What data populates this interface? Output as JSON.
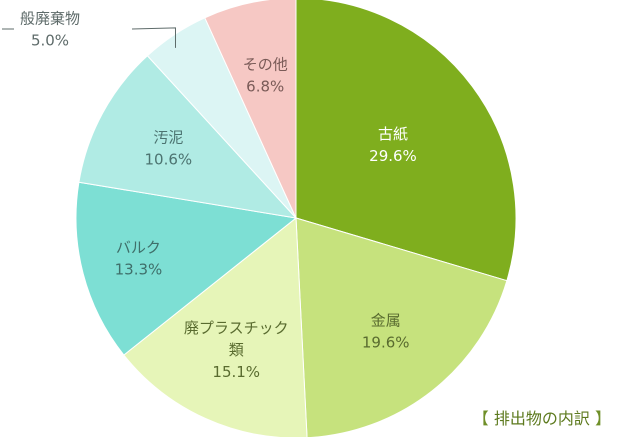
{
  "chart_data": {
    "type": "pie",
    "title": "",
    "slices": [
      {
        "label": [
          "古紙"
        ],
        "value": 29.6,
        "value_text": "29.6%",
        "color": "#7fae1e",
        "text_color": "#ffffff"
      },
      {
        "label": [
          "金属"
        ],
        "value": 19.6,
        "value_text": "19.6%",
        "color": "#c6e27d",
        "text_color": "#596b2f"
      },
      {
        "label": [
          "廃プラスチック",
          "類"
        ],
        "value": 15.1,
        "value_text": "15.1%",
        "color": "#e6f5b8",
        "text_color": "#596b2f"
      },
      {
        "label": [
          "バルク"
        ],
        "value": 13.3,
        "value_text": "13.3%",
        "color": "#7ddfd4",
        "text_color": "#3f6f6a"
      },
      {
        "label": [
          "汚泥"
        ],
        "value": 10.6,
        "value_text": "10.6%",
        "color": "#b0ebe4",
        "text_color": "#4c7370"
      },
      {
        "label": [
          "般廃棄物"
        ],
        "value": 5.0,
        "value_text": "5.0%",
        "color": "#dcf5f4",
        "text_color": "#5e6b6a",
        "callout": true
      },
      {
        "label": [
          "その他"
        ],
        "value": 6.8,
        "value_text": "6.8%",
        "color": "#f6c8c4",
        "text_color": "#7a5b58"
      }
    ],
    "start": "12 o'clock",
    "direction": "clockwise",
    "legend": "none"
  },
  "caption": {
    "open": "【",
    "text": "排出物の内訳",
    "close": "】"
  }
}
